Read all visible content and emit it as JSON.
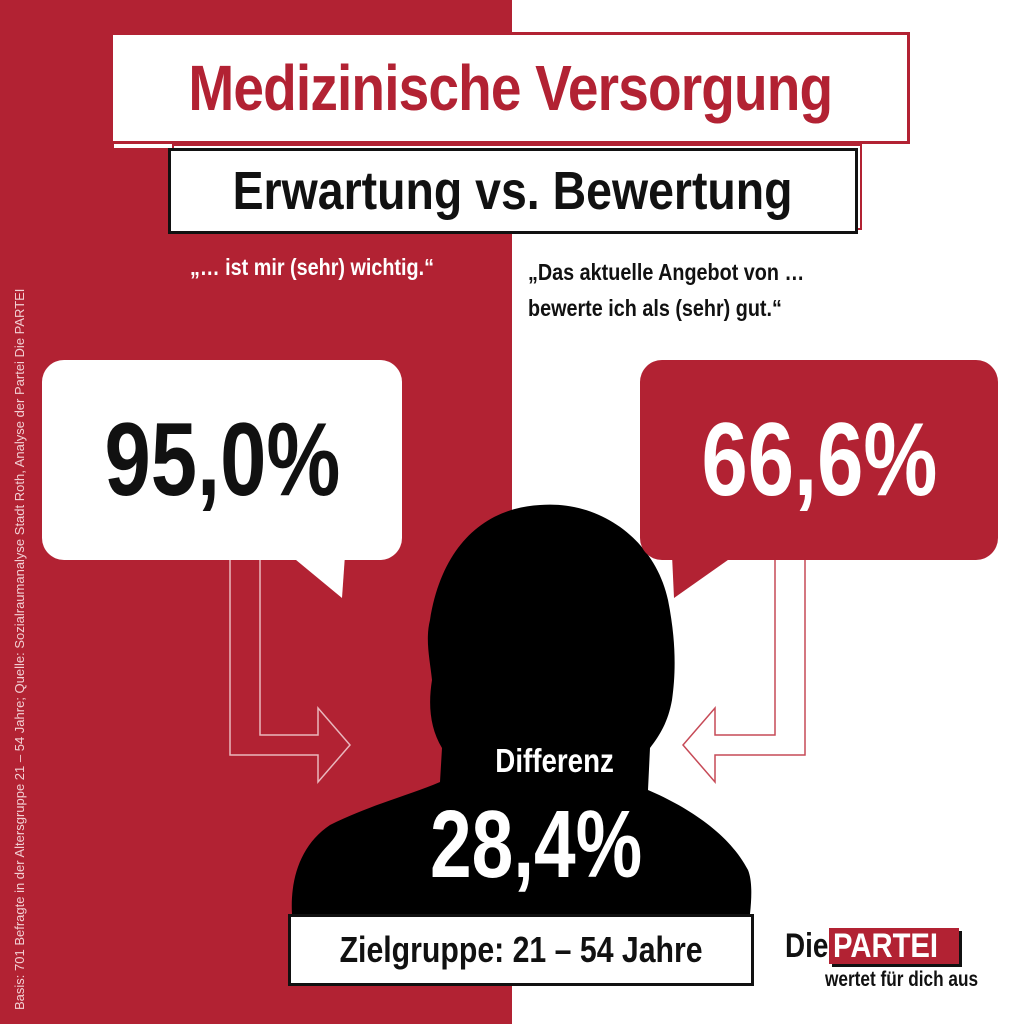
{
  "title": "Medizinische Versorgung",
  "subtitle": "Erwartung vs. Bewertung",
  "left_quote": "„… ist mir (sehr) wichtig.“",
  "right_quote": {
    "line1": "„Das aktuelle Angebot von …",
    "line2": "bewerte ich als (sehr) gut.“"
  },
  "source_note": "Basis: 701 Befragte in der Altersgruppe 21 – 54 Jahre; Quelle: Sozialraumanalyse Stadt Roth, Analyse der Partei Die PARTEI",
  "expectation_value": "95,0%",
  "rating_value": "66,6%",
  "difference": {
    "label": "Differenz",
    "value": "28,4%"
  },
  "target_group": "Zielgruppe: 21 – 54 Jahre",
  "logo": {
    "die": "Die",
    "partei": "PARTEI",
    "tagline": "wertet für dich aus"
  },
  "colors": {
    "red": "#b22233",
    "white": "#ffffff",
    "black": "#111111"
  },
  "icons": {
    "silhouette": "person-silhouette-icon",
    "arrow_left": "arrow-right-icon",
    "arrow_right": "arrow-left-icon"
  }
}
